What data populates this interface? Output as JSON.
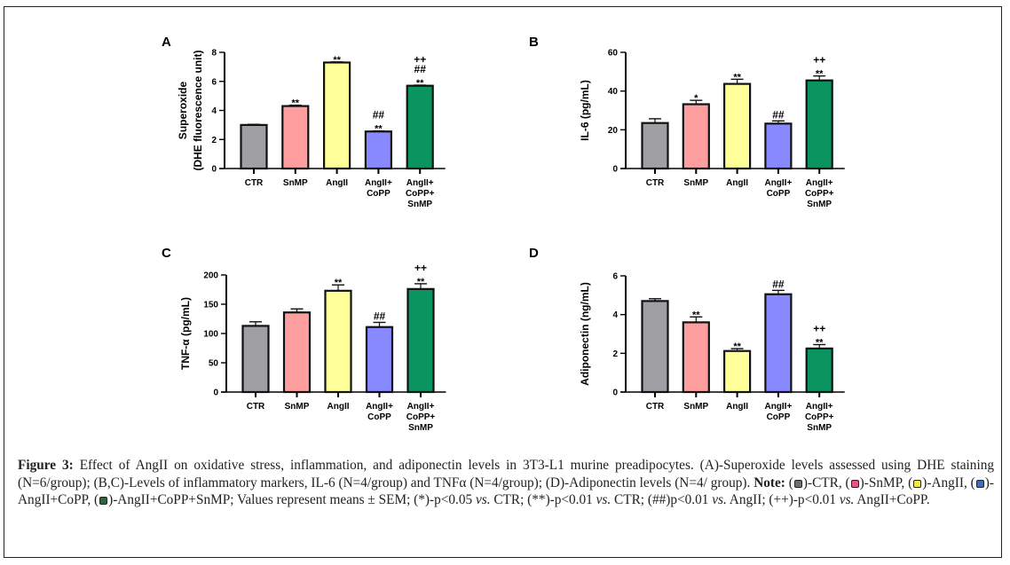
{
  "figure": {
    "caption_label": "Figure 3:",
    "caption_intro": " Effect of AngII on oxidative stress, inflammation, and adiponectin levels in 3T3-L1 murine preadipocytes. (A)-Superoxide levels assessed using DHE staining (N=6/group); (B,C)-Levels of inflammatory markers, IL-6 (N=4/group) and TNFα (N=4/group); (D)-Adiponectin levels (N=4/ group). ",
    "note_label": "Note:",
    "legend": [
      {
        "label": "-CTR, ",
        "color": "#6e6e6e"
      },
      {
        "label": "-SnMP, ",
        "color": "#e8528a"
      },
      {
        "label": "-AngII, ",
        "color": "#f2e84a"
      },
      {
        "label": "-AngII+CoPP, ",
        "color": "#3a6fc0"
      },
      {
        "label": "-AngII+CoPP+SnMP; ",
        "color": "#2a6a32"
      }
    ],
    "caption_tail_1": "Values represent means ± SEM; (*)-p<0.05 ",
    "vs": "vs.",
    "caption_tail_2": " CTR; (**)-p<0.01 ",
    "caption_tail_3": " CTR; (##)p<0.01 ",
    "caption_tail_4": " AngII; (++)-p<0.01 ",
    "caption_tail_5": " AngII+CoPP."
  },
  "chart_data": [
    {
      "panel": "A",
      "type": "bar",
      "ylabel_line1": "Superoxide",
      "ylabel_line2": "(DHE fluorescence unit)",
      "categories": [
        [
          "CTR"
        ],
        [
          "SnMP"
        ],
        [
          "AngII"
        ],
        [
          "AngII+",
          "CoPP"
        ],
        [
          "AngII+",
          "CoPP+",
          "SnMP"
        ]
      ],
      "values": [
        3.0,
        4.3,
        7.3,
        2.55,
        5.7
      ],
      "errors": [
        0.04,
        0.06,
        0.04,
        0.04,
        0.04
      ],
      "annotations": [
        [],
        [
          "**"
        ],
        [
          "**"
        ],
        [
          "##",
          "**"
        ],
        [
          "++",
          "##",
          "**"
        ]
      ],
      "colors": [
        "#a09fa4",
        "#ff9e9e",
        "#ffff99",
        "#8888ff",
        "#0a9460"
      ],
      "ylim": [
        0,
        8
      ],
      "yticks": [
        0,
        2,
        4,
        6,
        8
      ]
    },
    {
      "panel": "B",
      "type": "bar",
      "ylabel_line1": "IL-6 (pg/mL)",
      "ylabel_line2": "",
      "categories": [
        [
          "CTR"
        ],
        [
          "SnMP"
        ],
        [
          "AngII"
        ],
        [
          "AngII+",
          "CoPP"
        ],
        [
          "AngII+",
          "CoPP+",
          "SnMP"
        ]
      ],
      "values": [
        23.5,
        33.2,
        43.7,
        23.2,
        45.5
      ],
      "errors": [
        2.2,
        2.0,
        2.4,
        1.4,
        2.3
      ],
      "annotations": [
        [],
        [
          "*"
        ],
        [
          "**"
        ],
        [
          "##"
        ],
        [
          "++",
          "**"
        ]
      ],
      "colors": [
        "#a09fa4",
        "#ff9e9e",
        "#ffff99",
        "#8888ff",
        "#0a9460"
      ],
      "ylim": [
        0,
        60
      ],
      "yticks": [
        0,
        20,
        40,
        60
      ]
    },
    {
      "panel": "C",
      "type": "bar",
      "ylabel_line1": "TNF-α (pg/mL)",
      "ylabel_line2": "",
      "categories": [
        [
          "CTR"
        ],
        [
          "SnMP"
        ],
        [
          "AngII"
        ],
        [
          "AngII+",
          "CoPP"
        ],
        [
          "AngII+",
          "CoPP+",
          "SnMP"
        ]
      ],
      "values": [
        113,
        136,
        173,
        111,
        176
      ],
      "errors": [
        7,
        6,
        10,
        8,
        9
      ],
      "annotations": [
        [],
        [],
        [
          "**"
        ],
        [
          "##"
        ],
        [
          "++",
          "**"
        ]
      ],
      "colors": [
        "#a09fa4",
        "#ff9e9e",
        "#ffff99",
        "#8888ff",
        "#0a9460"
      ],
      "ylim": [
        0,
        200
      ],
      "yticks": [
        0,
        50,
        100,
        150,
        200
      ]
    },
    {
      "panel": "D",
      "type": "bar",
      "ylabel_line1": "Adiponectin (ng/mL)",
      "ylabel_line2": "",
      "categories": [
        [
          "CTR"
        ],
        [
          "SnMP"
        ],
        [
          "AngII"
        ],
        [
          "AngII+",
          "CoPP"
        ],
        [
          "AngII+",
          "CoPP+",
          "SnMP"
        ]
      ],
      "values": [
        4.7,
        3.6,
        2.12,
        5.05,
        2.25
      ],
      "errors": [
        0.12,
        0.28,
        0.12,
        0.2,
        0.2
      ],
      "annotations": [
        [],
        [
          "**"
        ],
        [
          "**"
        ],
        [
          "##"
        ],
        [
          "++",
          "**"
        ]
      ],
      "colors": [
        "#a09fa4",
        "#ff9e9e",
        "#ffff99",
        "#8888ff",
        "#0a9460"
      ],
      "ylim": [
        0,
        6
      ],
      "yticks": [
        0,
        2,
        4,
        6
      ]
    }
  ]
}
